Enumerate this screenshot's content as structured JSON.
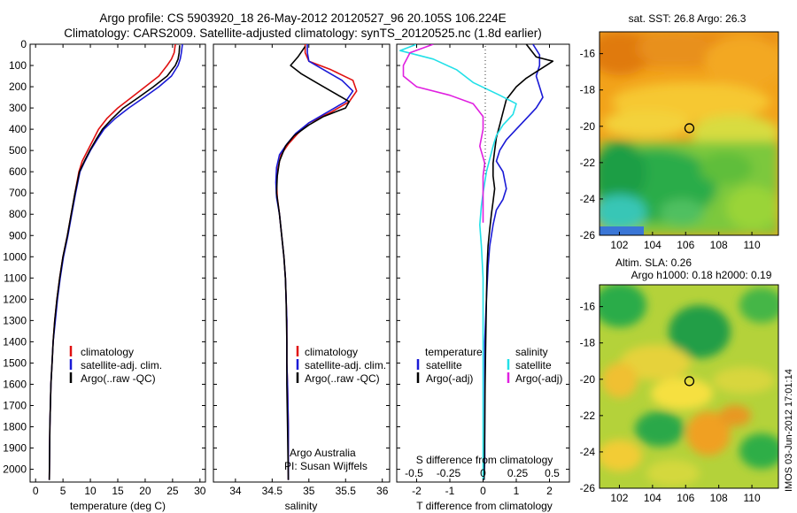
{
  "title": {
    "line1": "Argo profile: CS 5903920_18 26-May-2012 20120527_96 20.105S 106.224E",
    "line2": "Climatology: CARS2009. Satellite-adjusted climatology: synTS_20120525.nc (1.8d earlier)"
  },
  "depth_ticks": [
    "0",
    "100",
    "200",
    "300",
    "400",
    "500",
    "600",
    "700",
    "800",
    "900",
    "1000",
    "1100",
    "1200",
    "1300",
    "1400",
    "1500",
    "1600",
    "1700",
    "1800",
    "1900",
    "2000"
  ],
  "colors": {
    "climatology": "#e01010",
    "satellite": "#1a1ad6",
    "argo": "#000000",
    "sat_s": "#22e0e8",
    "argo_s": "#e020e0"
  },
  "chart_data": [
    {
      "type": "line",
      "xlabel": "temperature (deg C)",
      "ylabel": "",
      "xlim": [
        -1,
        31
      ],
      "ylim": [
        2060,
        0
      ],
      "xticks": [
        "0",
        "5",
        "10",
        "15",
        "20",
        "25",
        "30"
      ],
      "legend": [
        "climatology",
        "satellite-adj. clim.",
        "Argo(..raw -QC)"
      ],
      "series": [
        {
          "name": "climatology",
          "color": "#e01010",
          "x": [
            25.5,
            25.3,
            24.8,
            24.0,
            22.5,
            20.0,
            17.5,
            15.0,
            13.0,
            11.5,
            10.5,
            9.5,
            8.5,
            7.9,
            7.2,
            6.5,
            5.8,
            5.0,
            4.4,
            3.9,
            3.5,
            3.2,
            3.0,
            2.8,
            2.6,
            2.5
          ],
          "y": [
            0,
            40,
            70,
            100,
            150,
            200,
            250,
            300,
            350,
            400,
            450,
            500,
            550,
            600,
            700,
            800,
            900,
            1000,
            1100,
            1200,
            1300,
            1400,
            1500,
            1600,
            1800,
            2050
          ]
        },
        {
          "name": "satellite-adj. clim.",
          "color": "#1a1ad6",
          "x": [
            26.8,
            26.6,
            26.4,
            26.0,
            24.8,
            22.5,
            19.8,
            17.0,
            14.5,
            12.5,
            11.2,
            10.0,
            9.0,
            8.1,
            7.3,
            6.6,
            5.9,
            5.1,
            4.5,
            4.0,
            3.6,
            3.2,
            3.0,
            2.8,
            2.6,
            2.5
          ],
          "y": [
            0,
            40,
            70,
            100,
            150,
            200,
            250,
            300,
            350,
            400,
            450,
            500,
            550,
            600,
            700,
            800,
            900,
            1000,
            1100,
            1200,
            1300,
            1400,
            1500,
            1600,
            1800,
            2050
          ]
        },
        {
          "name": "Argo(..raw -QC)",
          "color": "#000000",
          "x": [
            26.3,
            26.2,
            26.0,
            25.5,
            24.0,
            21.5,
            18.8,
            16.0,
            14.0,
            12.2,
            11.0,
            9.9,
            8.9,
            8.0,
            7.2,
            6.5,
            5.8,
            5.0,
            4.4,
            3.9,
            3.5,
            3.2,
            3.0,
            2.8,
            2.6,
            2.5
          ],
          "y": [
            5,
            40,
            70,
            100,
            150,
            200,
            250,
            300,
            350,
            400,
            450,
            500,
            550,
            600,
            700,
            800,
            900,
            1000,
            1100,
            1200,
            1300,
            1400,
            1500,
            1600,
            1800,
            2050
          ]
        }
      ]
    },
    {
      "type": "line",
      "xlabel": "salinity",
      "ylabel": "",
      "xlim": [
        33.7,
        36.1
      ],
      "ylim": [
        2060,
        0
      ],
      "xticks": [
        "34",
        "34.5",
        "35",
        "35.5",
        "36"
      ],
      "legend": [
        "climatology",
        "satellite-adj. clim.",
        "Argo(..raw -QC)"
      ],
      "annotation": [
        "Argo Australia",
        "PI: Susan Wijffels"
      ],
      "series": [
        {
          "name": "climatology",
          "color": "#e01010",
          "x": [
            34.95,
            34.95,
            35.0,
            35.3,
            35.6,
            35.65,
            35.55,
            35.3,
            35.0,
            34.85,
            34.72,
            34.62,
            34.58,
            34.56,
            34.57,
            34.6,
            34.63,
            34.66,
            34.68,
            34.69,
            34.7,
            34.7,
            34.7,
            34.71,
            34.72,
            34.72
          ],
          "y": [
            0,
            40,
            80,
            120,
            170,
            220,
            270,
            320,
            370,
            420,
            470,
            520,
            580,
            650,
            720,
            800,
            900,
            1000,
            1100,
            1200,
            1300,
            1400,
            1500,
            1600,
            1800,
            2050
          ]
        },
        {
          "name": "satellite-adj. clim.",
          "color": "#1a1ad6",
          "x": [
            34.98,
            34.98,
            35.0,
            35.2,
            35.45,
            35.6,
            35.5,
            35.25,
            35.0,
            34.82,
            34.7,
            34.6,
            34.56,
            34.55,
            34.56,
            34.6,
            34.63,
            34.66,
            34.68,
            34.69,
            34.7,
            34.7,
            34.7,
            34.71,
            34.72,
            34.72
          ],
          "y": [
            0,
            40,
            80,
            120,
            170,
            220,
            270,
            320,
            370,
            420,
            470,
            520,
            580,
            650,
            720,
            800,
            900,
            1000,
            1100,
            1200,
            1300,
            1400,
            1500,
            1600,
            1800,
            2050
          ]
        },
        {
          "name": "Argo(..raw -QC)",
          "color": "#000000",
          "x": [
            34.95,
            34.85,
            34.75,
            34.9,
            35.1,
            35.3,
            35.45,
            35.55,
            35.5,
            35.2,
            35.0,
            34.8,
            34.68,
            34.6,
            34.57,
            34.56,
            34.6,
            34.63,
            34.66,
            34.68,
            34.69,
            34.7,
            34.7,
            34.71,
            34.72
          ],
          "y": [
            10,
            60,
            100,
            140,
            180,
            220,
            250,
            270,
            300,
            340,
            380,
            430,
            480,
            550,
            620,
            700,
            800,
            900,
            1000,
            1100,
            1200,
            1400,
            1600,
            1800,
            2050
          ]
        }
      ]
    },
    {
      "type": "line",
      "xlabel": "T difference from climatology",
      "xlabel_top": "S difference from climatology",
      "xlim": [
        -2.6,
        2.6
      ],
      "ylim": [
        2060,
        0
      ],
      "xticks": [
        "-2",
        "-1",
        "0",
        "1",
        "2"
      ],
      "xticks_top": [
        "-0.5",
        "-0.25",
        "0",
        "0.25",
        "0.5"
      ],
      "legend_left": {
        "title": "temperature",
        "items": [
          "satellite",
          "Argo(-adj)"
        ]
      },
      "legend_right": {
        "title": "salinity",
        "items": [
          "satellite",
          "Argo(-adj)"
        ]
      },
      "series": [
        {
          "name": "temperature satellite",
          "color": "#1a1ad6",
          "x": [
            1.5,
            1.7,
            1.7,
            1.6,
            1.7,
            1.8,
            1.6,
            1.3,
            1.0,
            0.7,
            0.5,
            0.4,
            0.6,
            0.7,
            0.6,
            0.4,
            0.3,
            0.2,
            0.15,
            0.1,
            0.05,
            0.05,
            0.05,
            0.05,
            0.03
          ],
          "y": [
            0,
            50,
            100,
            150,
            200,
            250,
            300,
            350,
            400,
            450,
            500,
            550,
            600,
            680,
            730,
            780,
            850,
            950,
            1050,
            1200,
            1400,
            1600,
            1800,
            1950,
            2050
          ]
        },
        {
          "name": "temperature Argo(-adj)",
          "color": "#000000",
          "x": [
            1.3,
            1.6,
            2.1,
            1.7,
            1.3,
            1.0,
            0.7,
            0.6,
            0.5,
            0.4,
            0.35,
            0.3,
            0.3,
            0.35,
            0.3,
            0.25,
            0.2,
            0.15,
            0.12,
            0.1,
            0.08,
            0.06,
            0.05,
            0.04,
            0.03
          ],
          "y": [
            0,
            60,
            80,
            120,
            160,
            200,
            260,
            320,
            380,
            440,
            500,
            560,
            620,
            680,
            740,
            800,
            870,
            950,
            1050,
            1200,
            1400,
            1600,
            1800,
            1950,
            2050
          ]
        },
        {
          "name": "salinity satellite",
          "color": "#22e0e8",
          "x": [
            -2.0,
            -2.5,
            -1.5,
            -0.8,
            -0.3,
            0.5,
            1.0,
            0.9,
            0.6,
            0.4,
            0.3,
            0.2,
            0.1,
            0.05,
            0.0,
            -0.05,
            -0.1,
            -0.05,
            0.0,
            0.0,
            0.0,
            0.0,
            0.0,
            0.0
          ],
          "y": [
            0,
            30,
            70,
            120,
            180,
            240,
            280,
            330,
            380,
            430,
            480,
            540,
            600,
            650,
            700,
            760,
            850,
            950,
            1100,
            1300,
            1500,
            1700,
            1900,
            2050
          ]
        },
        {
          "name": "salinity Argo(-adj)",
          "color": "#e020e0",
          "x": [
            -1.5,
            -2.2,
            -2.4,
            -2.4,
            -2.0,
            -1.0,
            -0.3,
            0.0,
            0.0,
            -0.1,
            0.05,
            0.0,
            0.0,
            0.0,
            0.0
          ],
          "y": [
            0,
            40,
            100,
            150,
            200,
            240,
            280,
            340,
            400,
            480,
            560,
            620,
            680,
            760,
            840
          ]
        }
      ]
    },
    {
      "type": "heatmap",
      "title": "sat. SST: 26.8 Argo: 26.3",
      "xlim": [
        100.8,
        111.6
      ],
      "ylim": [
        -26,
        -14.8
      ],
      "xticks": [
        "102",
        "104",
        "106",
        "108",
        "110"
      ],
      "yticks": [
        "-16",
        "-18",
        "-20",
        "-22",
        "-24",
        "-26"
      ],
      "marker": {
        "x": 106.224,
        "y": -20.105
      }
    },
    {
      "type": "heatmap",
      "title": "Altim. SLA: 0.26",
      "subtitle": "Argo h1000: 0.18 h2000: 0.19",
      "xlim": [
        100.8,
        111.6
      ],
      "ylim": [
        -26,
        -14.8
      ],
      "xticks": [
        "102",
        "104",
        "106",
        "108",
        "110"
      ],
      "yticks": [
        "-16",
        "-18",
        "-20",
        "-22",
        "-24",
        "-26"
      ],
      "marker": {
        "x": 106.224,
        "y": -20.105
      }
    }
  ],
  "footer_stamp": "IMOS 03-Jun-2012 17:01:14"
}
